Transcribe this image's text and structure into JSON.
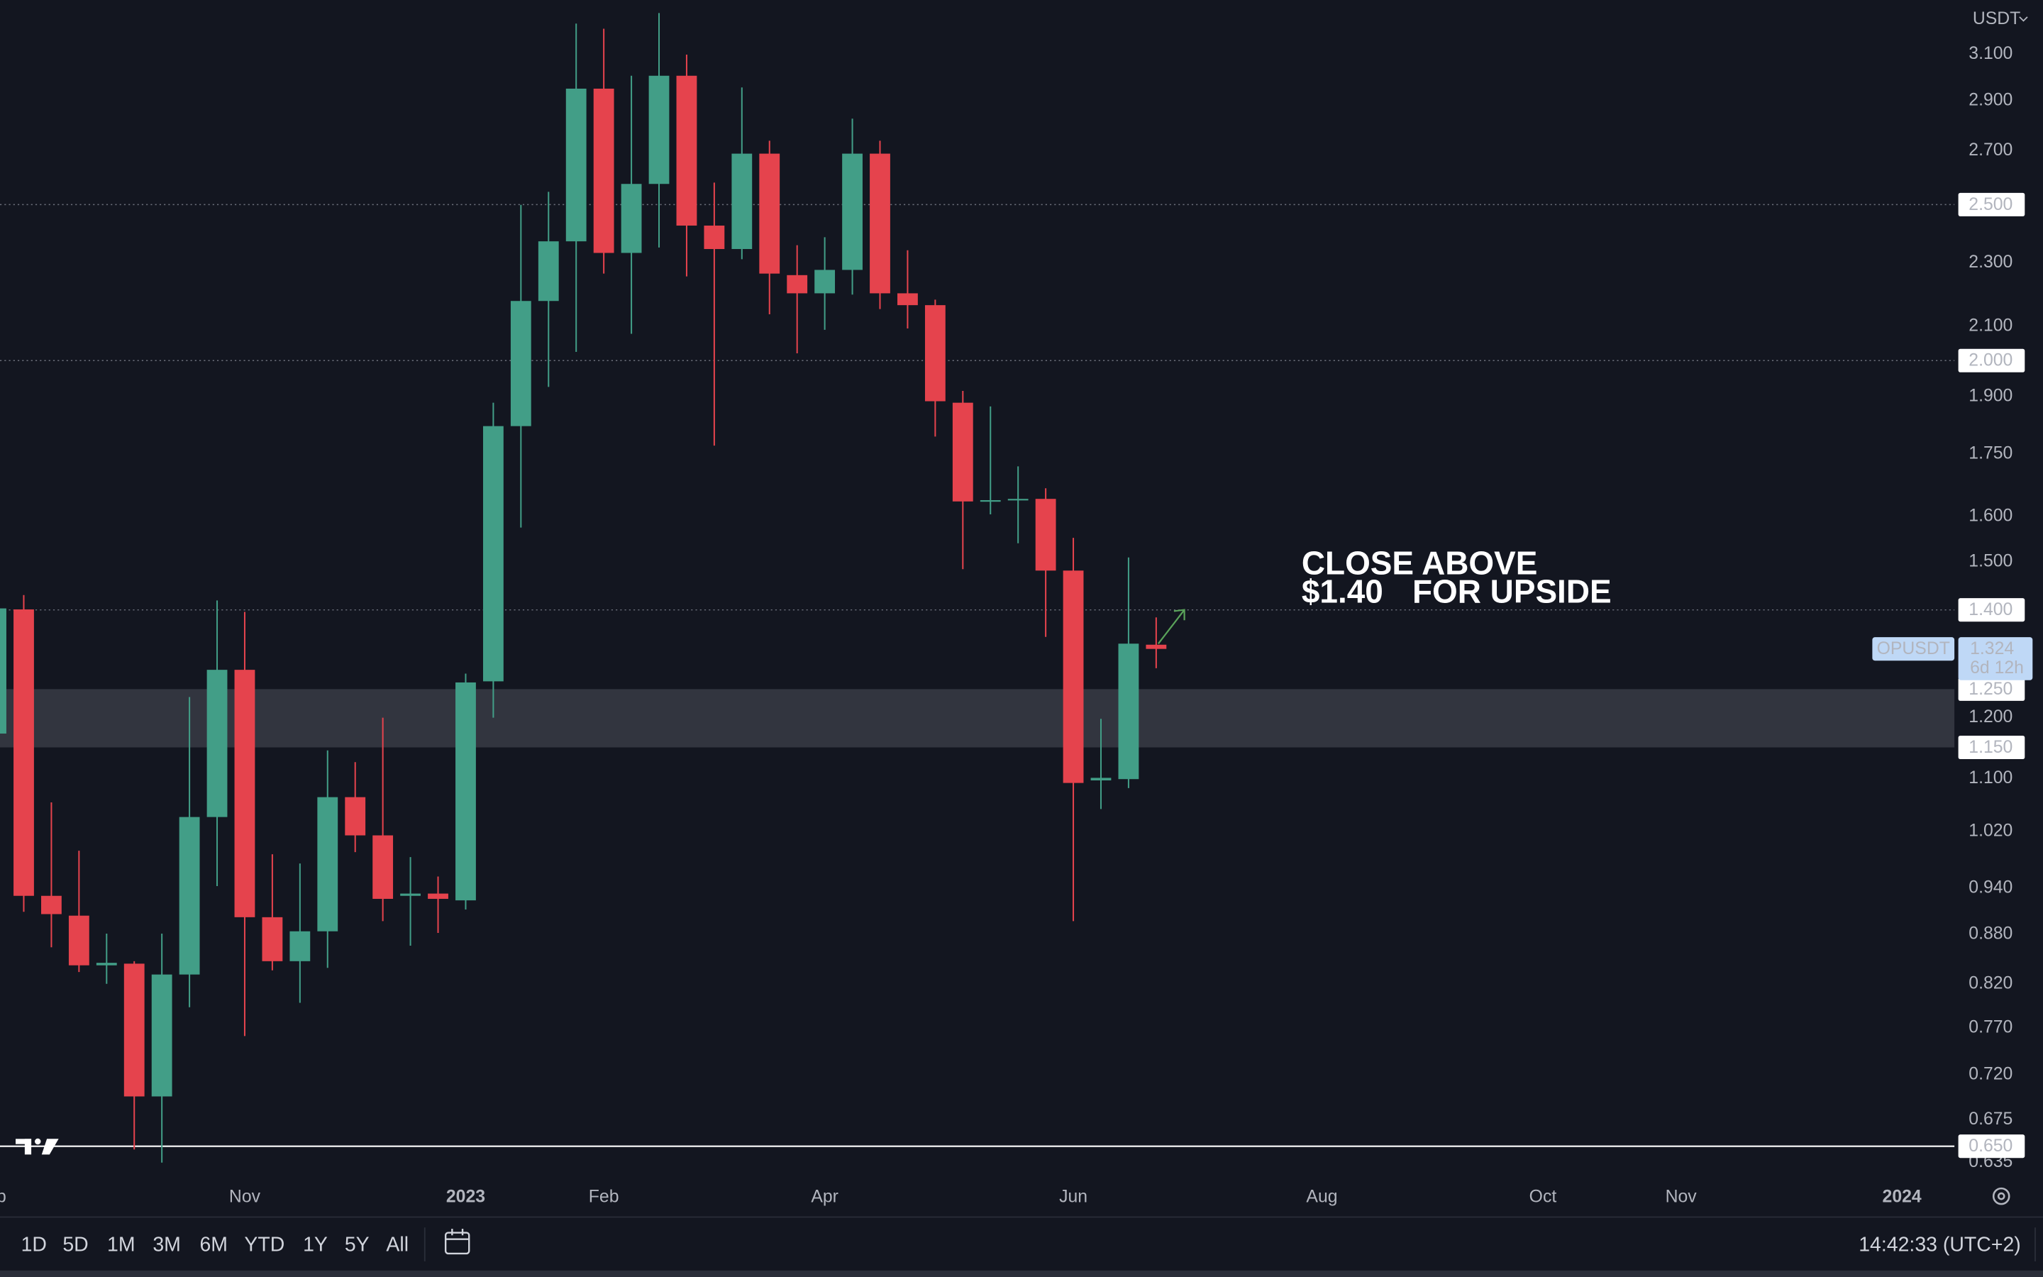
{
  "chart_data": {
    "type": "candlestick",
    "categories": [
      null,
      null,
      null,
      null,
      null,
      null,
      null,
      null,
      null,
      null,
      null,
      null,
      null,
      null,
      null,
      null,
      null,
      null,
      null,
      null,
      null,
      null,
      null,
      null,
      null,
      null,
      null,
      null,
      null,
      null,
      null,
      null,
      null,
      null,
      null,
      null,
      null,
      null,
      null,
      null,
      null,
      null,
      null
    ],
    "open": [
      1.173,
      1.401,
      0.93,
      0.904,
      0.842,
      0.844,
      0.698,
      0.831,
      1.041,
      1.285,
      0.902,
      0.847,
      0.884,
      1.071,
      1.014,
      0.93,
      0.933,
      0.924,
      1.264,
      1.821,
      2.178,
      2.372,
      2.951,
      2.333,
      2.575,
      3.006,
      2.426,
      2.346,
      2.689,
      2.26,
      2.202,
      2.277,
      2.689,
      2.202,
      2.165,
      1.883,
      1.635,
      1.638,
      1.641,
      1.481,
      1.097,
      1.099,
      1.332
    ],
    "high": [
      1.43,
      1.43,
      1.063,
      0.992,
      0.881,
      0.847,
      0.881,
      1.236,
      1.419,
      1.396,
      0.987,
      0.974,
      1.145,
      1.126,
      1.2,
      0.983,
      0.956,
      1.278,
      1.883,
      2.499,
      2.546,
      3.239,
      3.215,
      3.006,
      3.288,
      3.098,
      2.58,
      2.956,
      2.739,
      2.359,
      2.386,
      2.827,
      2.739,
      2.342,
      2.182,
      1.915,
      1.873,
      1.719,
      1.666,
      1.552,
      1.198,
      1.509,
      1.385
    ],
    "low": [
      1.158,
      0.909,
      0.864,
      0.834,
      0.82,
      0.647,
      0.635,
      0.793,
      0.943,
      0.761,
      0.836,
      0.798,
      0.839,
      0.99,
      0.897,
      0.866,
      0.882,
      0.912,
      1.2,
      1.575,
      1.926,
      2.025,
      2.265,
      2.078,
      2.351,
      2.256,
      1.771,
      2.312,
      2.137,
      2.021,
      2.09,
      2.198,
      2.153,
      2.094,
      1.794,
      1.484,
      1.605,
      1.54,
      1.347,
      0.897,
      1.053,
      1.085,
      1.288
    ],
    "close": [
      1.403,
      0.93,
      0.906,
      0.842,
      0.845,
      0.698,
      0.831,
      1.041,
      1.285,
      0.902,
      0.847,
      0.884,
      1.071,
      1.014,
      0.926,
      0.933,
      0.926,
      1.262,
      1.821,
      2.178,
      2.372,
      2.951,
      2.333,
      2.575,
      3.006,
      2.426,
      2.346,
      2.689,
      2.265,
      2.202,
      2.277,
      2.689,
      2.202,
      2.165,
      1.887,
      1.635,
      1.638,
      1.641,
      1.481,
      1.093,
      1.101,
      1.334,
      1.324
    ],
    "up_color": "#429e87",
    "down_color": "#e5434d",
    "log_scale": true,
    "grid": false,
    "ylim": [
      0.62,
      3.35
    ],
    "yticks": [
      {
        "value": 3.1,
        "label": "3.100"
      },
      {
        "value": 2.9,
        "label": "2.900"
      },
      {
        "value": 2.7,
        "label": "2.700"
      },
      {
        "value": 2.3,
        "label": "2.300"
      },
      {
        "value": 2.1,
        "label": "2.100"
      },
      {
        "value": 1.9,
        "label": "1.900"
      },
      {
        "value": 1.75,
        "label": "1.750"
      },
      {
        "value": 1.6,
        "label": "1.600"
      },
      {
        "value": 1.5,
        "label": "1.500"
      },
      {
        "value": 1.2,
        "label": "1.200"
      },
      {
        "value": 1.1,
        "label": "1.100"
      },
      {
        "value": 1.02,
        "label": "1.020"
      },
      {
        "value": 0.94,
        "label": "0.940"
      },
      {
        "value": 0.88,
        "label": "0.880"
      },
      {
        "value": 0.82,
        "label": "0.820"
      },
      {
        "value": 0.77,
        "label": "0.770"
      },
      {
        "value": 0.72,
        "label": "0.720"
      },
      {
        "value": 0.675,
        "label": "0.675"
      },
      {
        "value": 0.635,
        "label": "0.635"
      }
    ],
    "xlim": [
      0.14,
      70.9
    ],
    "xticks": [
      {
        "value": -0.2,
        "label": "Sep"
      },
      {
        "value": 9,
        "label": "Nov"
      },
      {
        "value": 17,
        "label": "2023"
      },
      {
        "value": 22,
        "label": "Feb"
      },
      {
        "value": 30,
        "label": "Apr"
      },
      {
        "value": 39,
        "label": "Jun"
      },
      {
        "value": 48,
        "label": "Aug"
      },
      {
        "value": 56,
        "label": "Oct"
      },
      {
        "value": 61,
        "label": "Nov"
      },
      {
        "value": 69,
        "label": "2024"
      }
    ],
    "currency": "USDT",
    "symbol": "OPUSDT",
    "last_price": {
      "value": 1.324,
      "label": "1.324"
    },
    "countdown": "6d 12h",
    "levels": [
      {
        "value": 2.5,
        "label": "2.500",
        "style": "dotted"
      },
      {
        "value": 2.0,
        "label": "2.000",
        "style": "dotted"
      },
      {
        "value": 1.4,
        "label": "1.400",
        "style": "dotted"
      },
      {
        "value": 0.65,
        "label": "0.650",
        "style": "solid"
      }
    ],
    "zone": {
      "from": {
        "value": 1.15,
        "label": "1.150"
      },
      "to": {
        "value": 1.25,
        "label": "1.250"
      },
      "color": "#363943"
    },
    "annotation": {
      "line1": "CLOSE ABOVE",
      "price": "$1.40",
      "line2": "FOR UPSIDE",
      "highlight_color": "#5aa35a"
    }
  },
  "toolbar": {
    "ranges": [
      "1D",
      "5D",
      "1M",
      "3M",
      "6M",
      "YTD",
      "1Y",
      "5Y",
      "All"
    ],
    "clock": "14:42:33 (UTC+2)"
  }
}
